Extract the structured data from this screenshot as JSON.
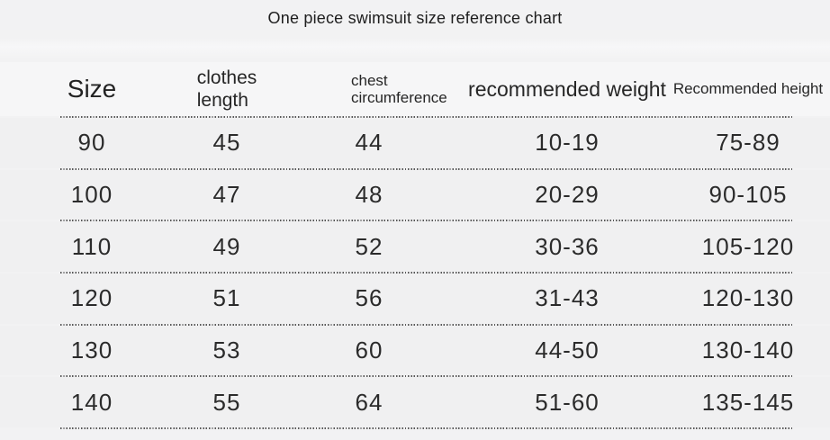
{
  "page": {
    "title": "One piece swimsuit size reference chart"
  },
  "chart_data": {
    "type": "table",
    "title": "One piece swimsuit size reference chart",
    "columns": [
      "Size",
      "clothes length",
      "chest circumference",
      "recommended weight",
      "Recommended height"
    ],
    "rows": [
      [
        "90",
        "45",
        "44",
        "10-19",
        "75-89"
      ],
      [
        "100",
        "47",
        "48",
        "20-29",
        "90-105"
      ],
      [
        "110",
        "49",
        "52",
        "30-36",
        "105-120"
      ],
      [
        "120",
        "51",
        "56",
        "31-43",
        "120-130"
      ],
      [
        "130",
        "53",
        "60",
        "44-50",
        "130-140"
      ],
      [
        "140",
        "55",
        "64",
        "51-60",
        "135-145"
      ]
    ],
    "layout": {
      "row_separators": "dotted horizontal lines",
      "legend": "none",
      "header_wrap": [
        "clothes length",
        "chest circumference"
      ]
    }
  },
  "colors": {
    "page_background": "#f2f2f3",
    "row_background_odd": "#f0f0f1",
    "row_background_even": "#f5f5f6",
    "header_background": "#f6f6f7",
    "text": "#262626",
    "divider_dots": "#575757"
  }
}
